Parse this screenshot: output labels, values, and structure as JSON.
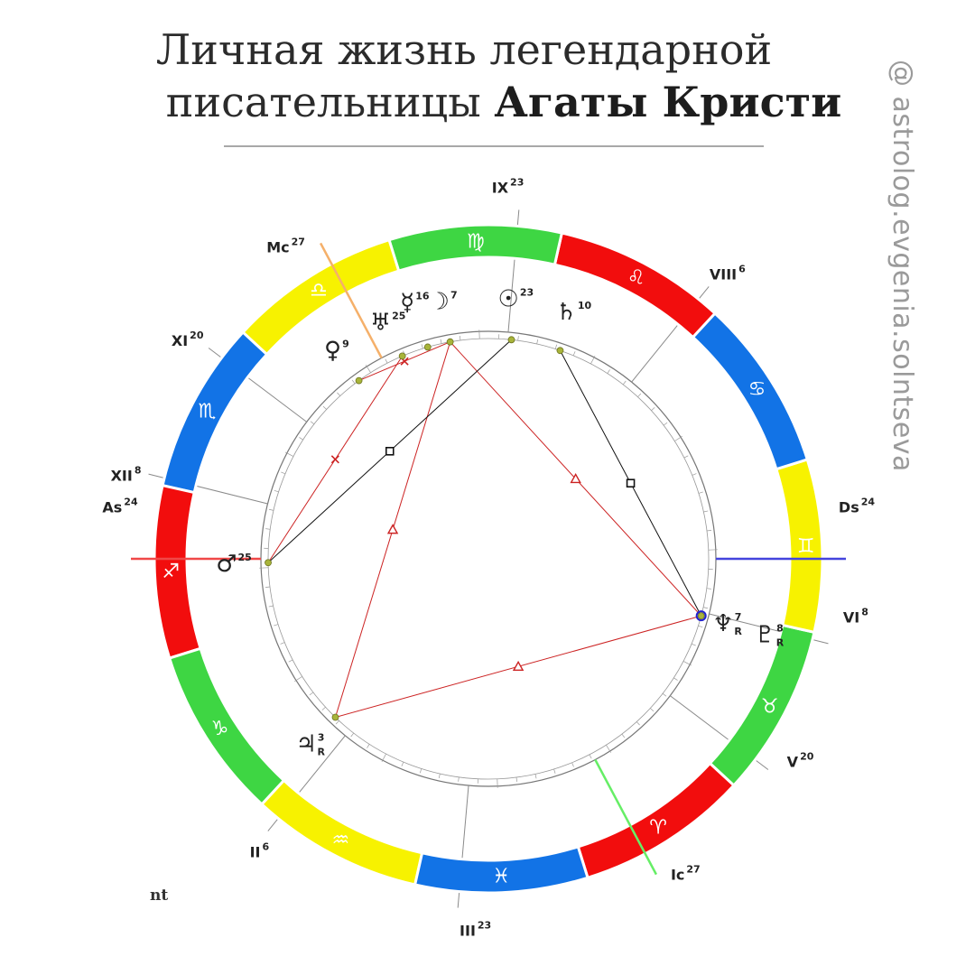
{
  "header": {
    "title_line1": "Личная жизнь легендарной",
    "title_line2_plain": "писательницы ",
    "title_line2_bold": "Агаты Кристи"
  },
  "watermark": "@ astrolog.evgenia.solntseva",
  "corner_text": "nt",
  "colors": {
    "fire": "#f20d0d",
    "earth": "#3ed643",
    "air": "#f7f200",
    "water": "#1273e6",
    "aspect_red": "#cc2222",
    "aspect_black": "#111111",
    "asc_axis": "#f04848",
    "desc_axis": "#4444dd",
    "mc_axis": "#f5b06a",
    "ic_axis": "#66ee66",
    "planet_dot": "#a8b43a"
  },
  "signs": [
    {
      "symbol": "♈",
      "element": "fire"
    },
    {
      "symbol": "♉",
      "element": "earth"
    },
    {
      "symbol": "♊",
      "element": "air"
    },
    {
      "symbol": "♋",
      "element": "water"
    },
    {
      "symbol": "♌",
      "element": "fire"
    },
    {
      "symbol": "♍",
      "element": "earth"
    },
    {
      "symbol": "♎",
      "element": "air"
    },
    {
      "symbol": "♏",
      "element": "water"
    },
    {
      "symbol": "♐",
      "element": "fire"
    },
    {
      "symbol": "♑",
      "element": "earth"
    },
    {
      "symbol": "♒",
      "element": "air"
    },
    {
      "symbol": "♓",
      "element": "water"
    }
  ],
  "houses": [
    {
      "label": "As",
      "degree": "24"
    },
    {
      "label": "II",
      "degree": "6"
    },
    {
      "label": "III",
      "degree": "23"
    },
    {
      "label": "Ic",
      "degree": "27"
    },
    {
      "label": "V",
      "degree": "20"
    },
    {
      "label": "VI",
      "degree": "8"
    },
    {
      "label": "Ds",
      "degree": "24"
    },
    {
      "label": "VIII",
      "degree": "6"
    },
    {
      "label": "IX",
      "degree": "23"
    },
    {
      "label": "Mc",
      "degree": "27"
    },
    {
      "label": "XI",
      "degree": "20"
    },
    {
      "label": "XII",
      "degree": "8"
    }
  ],
  "planets": [
    {
      "id": "sun",
      "symbol": "☉",
      "degree": "23",
      "retro": ""
    },
    {
      "id": "saturn",
      "symbol": "♄",
      "degree": "10",
      "retro": ""
    },
    {
      "id": "moon",
      "symbol": "☽",
      "degree": "7",
      "retro": ""
    },
    {
      "id": "mercury",
      "symbol": "☿",
      "degree": "16",
      "retro": ""
    },
    {
      "id": "uranus",
      "symbol": "♅",
      "degree": "25",
      "retro": ""
    },
    {
      "id": "venus",
      "symbol": "♀",
      "degree": "9",
      "retro": ""
    },
    {
      "id": "mars",
      "symbol": "♂",
      "degree": "25",
      "retro": ""
    },
    {
      "id": "jupiter",
      "symbol": "♃",
      "degree": "3",
      "retro": "R"
    },
    {
      "id": "neptune",
      "symbol": "♆",
      "degree": "7",
      "retro": "R"
    },
    {
      "id": "pluto",
      "symbol": "♇",
      "degree": "8",
      "retro": "R"
    }
  ],
  "aspects": [
    {
      "from": "moon",
      "to": "neptune",
      "type": "trine"
    },
    {
      "from": "moon",
      "to": "jupiter",
      "type": "trine"
    },
    {
      "from": "jupiter",
      "to": "neptune",
      "type": "trine"
    },
    {
      "from": "uranus",
      "to": "mars",
      "type": "sextile"
    },
    {
      "from": "venus",
      "to": "moon",
      "type": "sextile"
    },
    {
      "from": "sun",
      "to": "mars",
      "type": "square"
    },
    {
      "from": "saturn",
      "to": "neptune",
      "type": "square"
    }
  ]
}
